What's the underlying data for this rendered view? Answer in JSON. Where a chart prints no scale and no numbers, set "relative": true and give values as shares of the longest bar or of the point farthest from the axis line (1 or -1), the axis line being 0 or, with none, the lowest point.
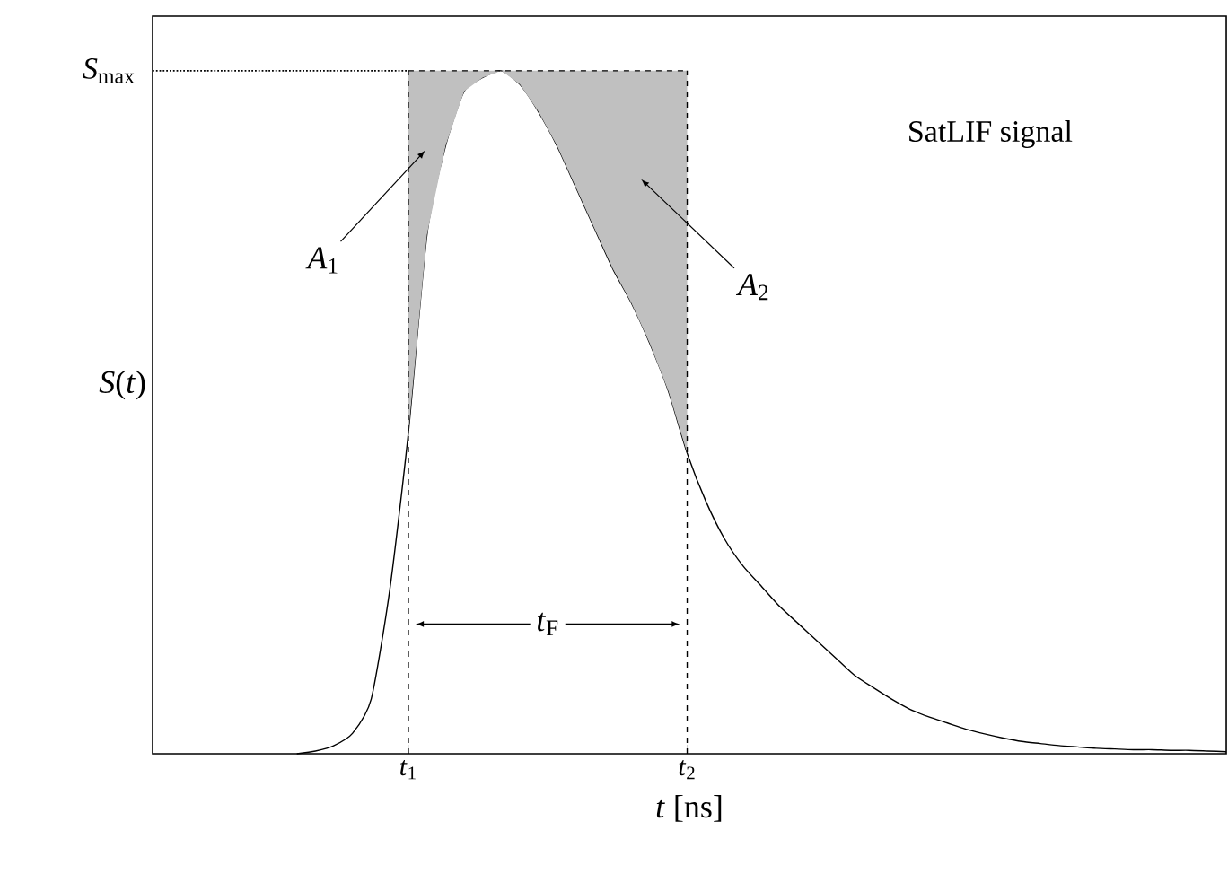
{
  "chart_data": {
    "type": "line",
    "relative": true,
    "xlabel": "*t*  [ns]",
    "ylabel": "*S*(*t*)",
    "categories": [
      null,
      null,
      null,
      null,
      null,
      null,
      "*t*$_{1}$",
      null,
      null,
      null,
      null,
      null,
      null,
      null,
      null,
      null,
      null,
      null,
      null,
      null,
      null,
      "*t*$_{2}$",
      null,
      null,
      null,
      null,
      null,
      null,
      null,
      null,
      null,
      null,
      null,
      null,
      null,
      null,
      null,
      null,
      null,
      null,
      null,
      null,
      null,
      null,
      null,
      null,
      null,
      null,
      null,
      null,
      null
    ],
    "series": [
      {
        "color": "#000000",
        "values": [
          0,
          0.004,
          0.012,
          0.03,
          0.08,
          0.24,
          0.47,
          0.76,
          0.89,
          0.97,
          0.99,
          1,
          0.98,
          0.94,
          0.89,
          0.83,
          0.77,
          0.71,
          0.66,
          0.6,
          0.53,
          0.44,
          0.37,
          0.315,
          0.275,
          0.245,
          0.215,
          0.19,
          0.165,
          0.14,
          0.115,
          0.097,
          0.08,
          0.065,
          0.054,
          0.045,
          0.036,
          0.029,
          0.023,
          0.018,
          0.015,
          0.012,
          0.01,
          0.008,
          0.007,
          0.006,
          0.006,
          0.005,
          0.005,
          0.004,
          0.003
        ]
      },
      {
        "type": "area",
        "color": "#c0c0c0",
        "values": [
          null,
          null,
          null,
          null,
          null,
          null,
          1,
          1,
          1,
          1,
          1,
          1,
          1,
          1,
          1,
          1,
          1,
          1,
          1,
          1,
          1,
          1,
          null,
          null,
          null,
          null,
          null,
          null,
          null,
          null,
          null,
          null,
          null,
          null,
          null,
          null,
          null,
          null,
          null,
          null,
          null,
          null,
          null,
          null,
          null,
          null,
          null,
          null,
          null,
          null,
          null
        ]
      }
    ],
    "ref_lines": [
      {
        "axis": "y",
        "value": 1,
        "label": "*S*$_{max}$",
        "line_style": "dotted"
      },
      {
        "axis": "x",
        "value": "*t*$_{1}$",
        "line_style": "dashed"
      },
      {
        "axis": "x",
        "value": "*t*$_{2}$",
        "line_style": "dashed"
      }
    ],
    "annotations": [
      "*A*$_{1}$",
      "*A*$_{2}$",
      "SatLIF signal",
      "*t*$_{F}$"
    ]
  }
}
